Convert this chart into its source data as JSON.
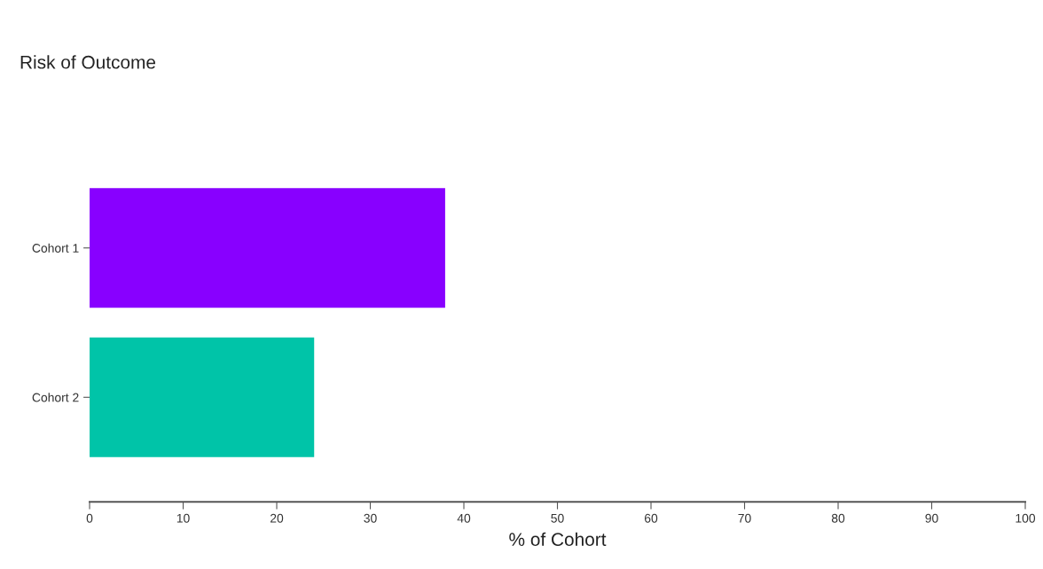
{
  "chart_data": {
    "type": "bar",
    "orientation": "horizontal",
    "title": "Risk of Outcome",
    "xlabel": "% of Cohort",
    "categories": [
      "Cohort 1",
      "Cohort 2"
    ],
    "values": [
      38,
      24
    ],
    "colors": [
      "#8800ff",
      "#00c4a8"
    ],
    "xlim": [
      0,
      100
    ],
    "xticks": [
      0,
      10,
      20,
      30,
      40,
      50,
      60,
      70,
      80,
      90,
      100
    ],
    "grid": false,
    "legend": false
  }
}
